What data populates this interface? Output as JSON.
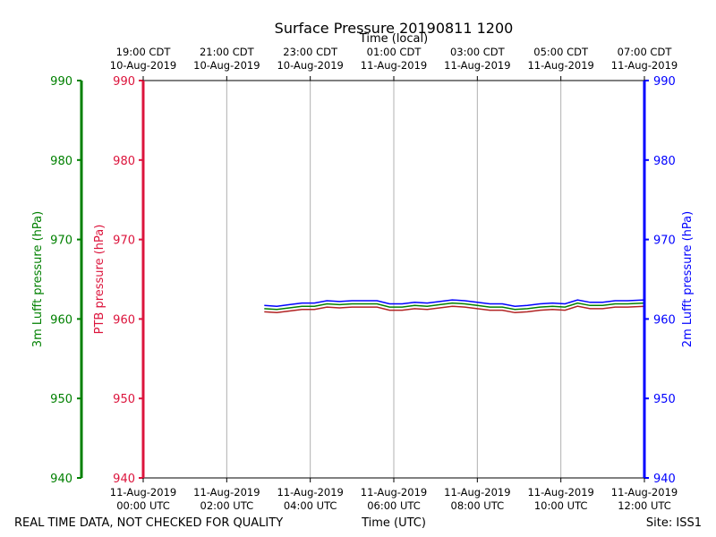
{
  "chart_data": {
    "type": "line",
    "title": "Surface Pressure 20190811 1200",
    "xlabel_bottom": "Time (UTC)",
    "xlabel_top": "Time (local)",
    "y_left_outer_label": "3m Lufft pressure (hPa)",
    "y_left_inner_label": "PTB pressure (hPa)",
    "y_right_label": "2m Lufft pressure (hPa)",
    "ylim": [
      940,
      990
    ],
    "yticks": [
      940,
      950,
      960,
      970,
      980,
      990
    ],
    "xlim": [
      0,
      12
    ],
    "grid": true,
    "bottom_ticks": [
      {
        "x": 0,
        "line1": "11-Aug-2019",
        "line2": "00:00 UTC"
      },
      {
        "x": 2,
        "line1": "11-Aug-2019",
        "line2": "02:00 UTC"
      },
      {
        "x": 4,
        "line1": "11-Aug-2019",
        "line2": "04:00 UTC"
      },
      {
        "x": 6,
        "line1": "11-Aug-2019",
        "line2": "06:00 UTC"
      },
      {
        "x": 8,
        "line1": "11-Aug-2019",
        "line2": "08:00 UTC"
      },
      {
        "x": 10,
        "line1": "11-Aug-2019",
        "line2": "10:00 UTC"
      },
      {
        "x": 12,
        "line1": "11-Aug-2019",
        "line2": "12:00 UTC"
      }
    ],
    "top_ticks": [
      {
        "x": 0,
        "line1": "19:00 CDT",
        "line2": "10-Aug-2019"
      },
      {
        "x": 2,
        "line1": "21:00 CDT",
        "line2": "10-Aug-2019"
      },
      {
        "x": 4,
        "line1": "23:00 CDT",
        "line2": "10-Aug-2019"
      },
      {
        "x": 6,
        "line1": "01:00 CDT",
        "line2": "11-Aug-2019"
      },
      {
        "x": 8,
        "line1": "03:00 CDT",
        "line2": "11-Aug-2019"
      },
      {
        "x": 10,
        "line1": "05:00 CDT",
        "line2": "11-Aug-2019"
      },
      {
        "x": 12,
        "line1": "07:00 CDT",
        "line2": "11-Aug-2019"
      }
    ],
    "series": [
      {
        "name": "2m Lufft pressure",
        "color": "#0000ff",
        "x": [
          2.9,
          3.2,
          3.5,
          3.8,
          4.1,
          4.4,
          4.7,
          5.0,
          5.3,
          5.6,
          5.9,
          6.2,
          6.5,
          6.8,
          7.1,
          7.4,
          7.7,
          8.0,
          8.3,
          8.6,
          8.9,
          9.2,
          9.5,
          9.8,
          10.1,
          10.4,
          10.7,
          11.0,
          11.3,
          11.6,
          12.0
        ],
        "y": [
          961.7,
          961.6,
          961.8,
          962.0,
          962.0,
          962.3,
          962.2,
          962.3,
          962.3,
          962.3,
          961.9,
          961.9,
          962.1,
          962.0,
          962.2,
          962.4,
          962.3,
          962.1,
          961.9,
          961.9,
          961.6,
          961.7,
          961.9,
          962.0,
          961.9,
          962.4,
          962.1,
          962.1,
          962.3,
          962.3,
          962.4
        ]
      },
      {
        "name": "3m Lufft pressure",
        "color": "#008000",
        "x": [
          2.9,
          3.2,
          3.5,
          3.8,
          4.1,
          4.4,
          4.7,
          5.0,
          5.3,
          5.6,
          5.9,
          6.2,
          6.5,
          6.8,
          7.1,
          7.4,
          7.7,
          8.0,
          8.3,
          8.6,
          8.9,
          9.2,
          9.5,
          9.8,
          10.1,
          10.4,
          10.7,
          11.0,
          11.3,
          11.6,
          12.0
        ],
        "y": [
          961.3,
          961.2,
          961.4,
          961.6,
          961.6,
          961.9,
          961.8,
          961.9,
          961.9,
          961.9,
          961.5,
          961.5,
          961.7,
          961.6,
          961.8,
          962.0,
          961.9,
          961.7,
          961.5,
          961.5,
          961.2,
          961.3,
          961.5,
          961.6,
          961.5,
          962.0,
          961.7,
          961.7,
          961.9,
          961.9,
          962.0
        ]
      },
      {
        "name": "PTB pressure",
        "color": "#b22222",
        "x": [
          2.9,
          3.2,
          3.5,
          3.8,
          4.1,
          4.4,
          4.7,
          5.0,
          5.3,
          5.6,
          5.9,
          6.2,
          6.5,
          6.8,
          7.1,
          7.4,
          7.7,
          8.0,
          8.3,
          8.6,
          8.9,
          9.2,
          9.5,
          9.8,
          10.1,
          10.4,
          10.7,
          11.0,
          11.3,
          11.6,
          12.0
        ],
        "y": [
          960.9,
          960.8,
          961.0,
          961.2,
          961.2,
          961.5,
          961.4,
          961.5,
          961.5,
          961.5,
          961.1,
          961.1,
          961.3,
          961.2,
          961.4,
          961.6,
          961.5,
          961.3,
          961.1,
          961.1,
          960.8,
          960.9,
          961.1,
          961.2,
          961.1,
          961.6,
          961.3,
          961.3,
          961.5,
          961.5,
          961.6
        ]
      }
    ]
  },
  "colors": {
    "left_outer_axis": "#008000",
    "left_inner_axis": "#dc143c",
    "right_axis": "#0000ff",
    "grid": "#b0b0b0"
  },
  "footer": {
    "left": "REAL TIME DATA, NOT CHECKED FOR QUALITY",
    "right": "Site: ISS1"
  }
}
